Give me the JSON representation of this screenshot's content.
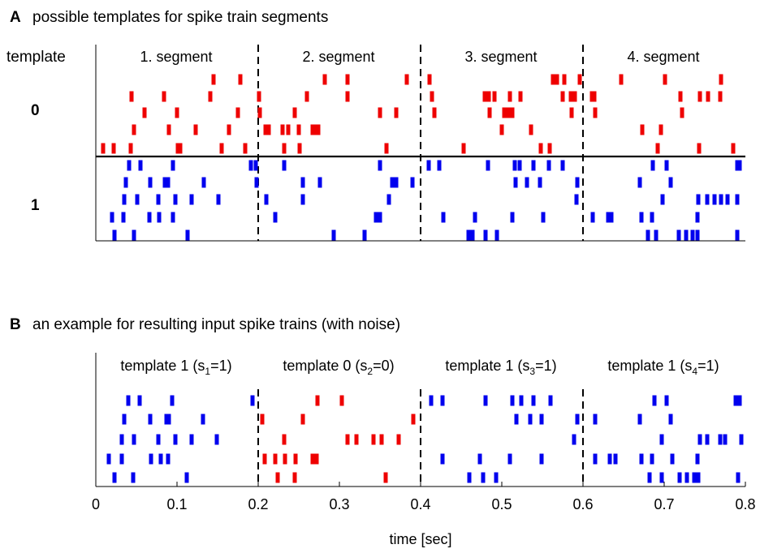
{
  "panelA": {
    "letter": "A",
    "title": "possible templates for spike train segments",
    "row_header": "template",
    "template_labels": [
      "0",
      "1"
    ],
    "segment_labels": [
      "1. segment",
      "2. segment",
      "3. segment",
      "4. segment"
    ]
  },
  "panelB": {
    "letter": "B",
    "title": "an example for resulting input spike trains (with noise)",
    "segment_labels": [
      {
        "pre": "template 1 (s",
        "sub": "1",
        "post": "=1)"
      },
      {
        "pre": "template 0 (s",
        "sub": "2",
        "post": "=0)"
      },
      {
        "pre": "template 1 (s",
        "sub": "3",
        "post": "=1)"
      },
      {
        "pre": "template 1 (s",
        "sub": "4",
        "post": "=1)"
      }
    ]
  },
  "axis": {
    "xlabel": "time [sec]",
    "ticks": [
      "0",
      "0.1",
      "0.2",
      "0.3",
      "0.4",
      "0.5",
      "0.6",
      "0.7",
      "0.8"
    ]
  },
  "colors": {
    "template0": "#ee0000",
    "template1": "#0000ee",
    "axis": "#000000"
  },
  "chart_data": [
    {
      "type": "scatter",
      "name": "panel A raster",
      "xlim": [
        0,
        0.8
      ],
      "segment_boundaries": [
        0.2,
        0.4,
        0.6
      ],
      "template0": [
        [
          0.145,
          0.178,
          0.282,
          0.31,
          0.383,
          0.411,
          0.563,
          0.568,
          0.577,
          0.596,
          0.647,
          0.701,
          0.77
        ],
        [
          0.044,
          0.084,
          0.141,
          0.201,
          0.26,
          0.31,
          0.414,
          0.479,
          0.484,
          0.491,
          0.51,
          0.523,
          0.575,
          0.585,
          0.59,
          0.611,
          0.614,
          0.72,
          0.744,
          0.754,
          0.769
        ],
        [
          0.06,
          0.1,
          0.175,
          0.202,
          0.245,
          0.35,
          0.37,
          0.417,
          0.485,
          0.503,
          0.508,
          0.513,
          0.586,
          0.615,
          0.722
        ],
        [
          0.047,
          0.09,
          0.123,
          0.164,
          0.209,
          0.213,
          0.23,
          0.237,
          0.25,
          0.267,
          0.271,
          0.274,
          0.5,
          0.536,
          0.673,
          0.696
        ],
        [
          0.009,
          0.022,
          0.043,
          0.101,
          0.104,
          0.155,
          0.184,
          0.232,
          0.251,
          0.358,
          0.453,
          0.548,
          0.559,
          0.692,
          0.743,
          0.785
        ]
      ],
      "template1": [
        [
          0.041,
          0.055,
          0.095,
          0.191,
          0.197,
          0.232,
          0.35,
          0.41,
          0.423,
          0.483,
          0.516,
          0.522,
          0.539,
          0.558,
          0.575,
          0.686,
          0.703,
          0.79,
          0.793
        ],
        [
          0.037,
          0.067,
          0.085,
          0.089,
          0.133,
          0.198,
          0.255,
          0.276,
          0.365,
          0.37,
          0.39,
          0.517,
          0.531,
          0.547,
          0.593,
          0.67,
          0.708
        ],
        [
          0.035,
          0.051,
          0.077,
          0.098,
          0.118,
          0.151,
          0.21,
          0.255,
          0.361,
          0.592,
          0.698,
          0.742,
          0.753,
          0.762,
          0.77,
          0.778,
          0.79
        ],
        [
          0.02,
          0.034,
          0.066,
          0.078,
          0.095,
          0.221,
          0.345,
          0.35,
          0.428,
          0.467,
          0.513,
          0.551,
          0.612,
          0.631,
          0.635,
          0.672,
          0.685,
          0.741
        ],
        [
          0.023,
          0.047,
          0.113,
          0.293,
          0.331,
          0.459,
          0.464,
          0.48,
          0.494,
          0.68,
          0.69,
          0.718,
          0.727,
          0.735,
          0.741,
          0.79
        ]
      ]
    },
    {
      "type": "scatter",
      "name": "panel B raster",
      "xlim": [
        0,
        0.8
      ],
      "segment_boundaries": [
        0.2,
        0.4,
        0.6
      ],
      "rows": [
        [
          {
            "t": 0.04,
            "c": 1
          },
          {
            "t": 0.054,
            "c": 1
          },
          {
            "t": 0.094,
            "c": 1
          },
          {
            "t": 0.193,
            "c": 1
          },
          {
            "t": 0.273,
            "c": 0
          },
          {
            "t": 0.303,
            "c": 0
          },
          {
            "t": 0.413,
            "c": 1
          },
          {
            "t": 0.427,
            "c": 1
          },
          {
            "t": 0.48,
            "c": 1
          },
          {
            "t": 0.513,
            "c": 1
          },
          {
            "t": 0.524,
            "c": 1
          },
          {
            "t": 0.539,
            "c": 1
          },
          {
            "t": 0.56,
            "c": 1
          },
          {
            "t": 0.688,
            "c": 1
          },
          {
            "t": 0.703,
            "c": 1
          },
          {
            "t": 0.788,
            "c": 1
          },
          {
            "t": 0.793,
            "c": 1
          }
        ],
        [
          {
            "t": 0.035,
            "c": 1
          },
          {
            "t": 0.067,
            "c": 1
          },
          {
            "t": 0.087,
            "c": 1
          },
          {
            "t": 0.09,
            "c": 1
          },
          {
            "t": 0.132,
            "c": 1
          },
          {
            "t": 0.205,
            "c": 0
          },
          {
            "t": 0.255,
            "c": 0
          },
          {
            "t": 0.391,
            "c": 0
          },
          {
            "t": 0.518,
            "c": 1
          },
          {
            "t": 0.535,
            "c": 1
          },
          {
            "t": 0.549,
            "c": 1
          },
          {
            "t": 0.593,
            "c": 1
          },
          {
            "t": 0.615,
            "c": 1
          },
          {
            "t": 0.67,
            "c": 1
          },
          {
            "t": 0.708,
            "c": 1
          }
        ],
        [
          {
            "t": 0.032,
            "c": 1
          },
          {
            "t": 0.047,
            "c": 1
          },
          {
            "t": 0.077,
            "c": 1
          },
          {
            "t": 0.098,
            "c": 1
          },
          {
            "t": 0.118,
            "c": 1
          },
          {
            "t": 0.149,
            "c": 1
          },
          {
            "t": 0.232,
            "c": 0
          },
          {
            "t": 0.31,
            "c": 0
          },
          {
            "t": 0.321,
            "c": 0
          },
          {
            "t": 0.342,
            "c": 0
          },
          {
            "t": 0.352,
            "c": 0
          },
          {
            "t": 0.373,
            "c": 0
          },
          {
            "t": 0.589,
            "c": 1
          },
          {
            "t": 0.697,
            "c": 1
          },
          {
            "t": 0.744,
            "c": 1
          },
          {
            "t": 0.753,
            "c": 1
          },
          {
            "t": 0.769,
            "c": 1
          },
          {
            "t": 0.775,
            "c": 1
          },
          {
            "t": 0.795,
            "c": 1
          }
        ],
        [
          {
            "t": 0.016,
            "c": 1
          },
          {
            "t": 0.032,
            "c": 1
          },
          {
            "t": 0.068,
            "c": 1
          },
          {
            "t": 0.08,
            "c": 1
          },
          {
            "t": 0.089,
            "c": 1
          },
          {
            "t": 0.208,
            "c": 0
          },
          {
            "t": 0.221,
            "c": 0
          },
          {
            "t": 0.233,
            "c": 0
          },
          {
            "t": 0.246,
            "c": 0
          },
          {
            "t": 0.267,
            "c": 0
          },
          {
            "t": 0.272,
            "c": 0
          },
          {
            "t": 0.427,
            "c": 1
          },
          {
            "t": 0.473,
            "c": 1
          },
          {
            "t": 0.51,
            "c": 1
          },
          {
            "t": 0.549,
            "c": 1
          },
          {
            "t": 0.615,
            "c": 1
          },
          {
            "t": 0.633,
            "c": 1
          },
          {
            "t": 0.64,
            "c": 1
          },
          {
            "t": 0.672,
            "c": 1
          },
          {
            "t": 0.685,
            "c": 1
          },
          {
            "t": 0.71,
            "c": 1
          },
          {
            "t": 0.741,
            "c": 1
          }
        ],
        [
          {
            "t": 0.023,
            "c": 1
          },
          {
            "t": 0.046,
            "c": 1
          },
          {
            "t": 0.112,
            "c": 1
          },
          {
            "t": 0.224,
            "c": 0
          },
          {
            "t": 0.245,
            "c": 0
          },
          {
            "t": 0.357,
            "c": 0
          },
          {
            "t": 0.46,
            "c": 1
          },
          {
            "t": 0.477,
            "c": 1
          },
          {
            "t": 0.493,
            "c": 1
          },
          {
            "t": 0.682,
            "c": 1
          },
          {
            "t": 0.697,
            "c": 1
          },
          {
            "t": 0.719,
            "c": 1
          },
          {
            "t": 0.728,
            "c": 1
          },
          {
            "t": 0.737,
            "c": 1
          },
          {
            "t": 0.742,
            "c": 1
          },
          {
            "t": 0.791,
            "c": 1
          }
        ]
      ]
    }
  ]
}
